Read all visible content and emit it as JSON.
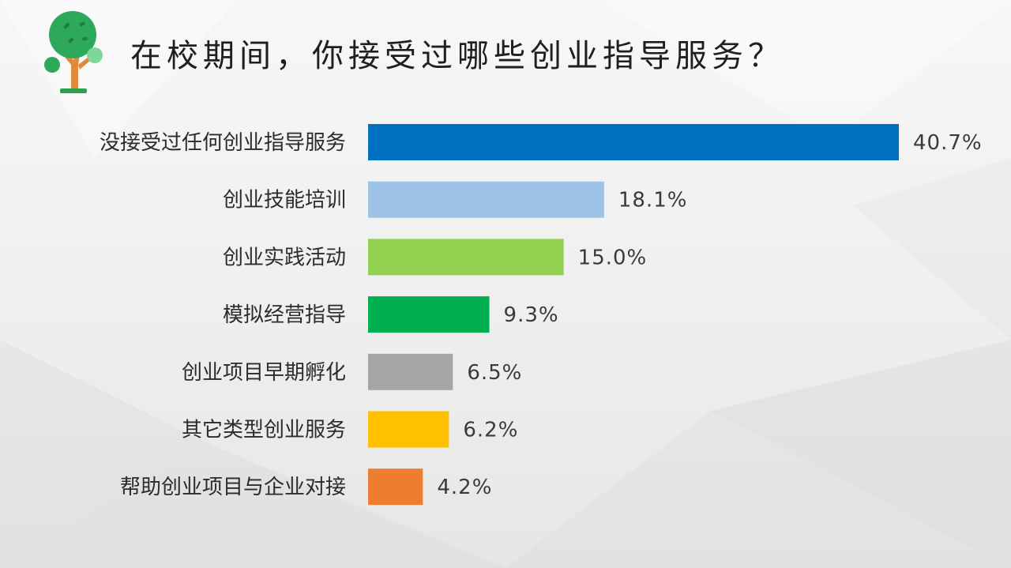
{
  "title": "在校期间，你接受过哪些创业指导服务？",
  "logo": {
    "icon": "tree-icon"
  },
  "chart_data": {
    "type": "bar",
    "orientation": "horizontal",
    "categories": [
      "没接受过任何创业指导服务",
      "创业技能培训",
      "创业实践活动",
      "模拟经营指导",
      "创业项目早期孵化",
      "其它类型创业服务",
      "帮助创业项目与企业对接"
    ],
    "values": [
      40.7,
      18.1,
      15.0,
      9.3,
      6.5,
      6.2,
      4.2
    ],
    "value_labels": [
      "40.7%",
      "18.1%",
      "15.0%",
      "9.3%",
      "6.5%",
      "6.2%",
      "4.2%"
    ],
    "unit": "%",
    "colors": [
      "#0070c0",
      "#9dc3e6",
      "#92d050",
      "#00b050",
      "#a5a5a5",
      "#ffc000",
      "#ed7d31"
    ],
    "xlim": [
      0,
      40.7
    ],
    "grid": false,
    "legend": "none"
  }
}
